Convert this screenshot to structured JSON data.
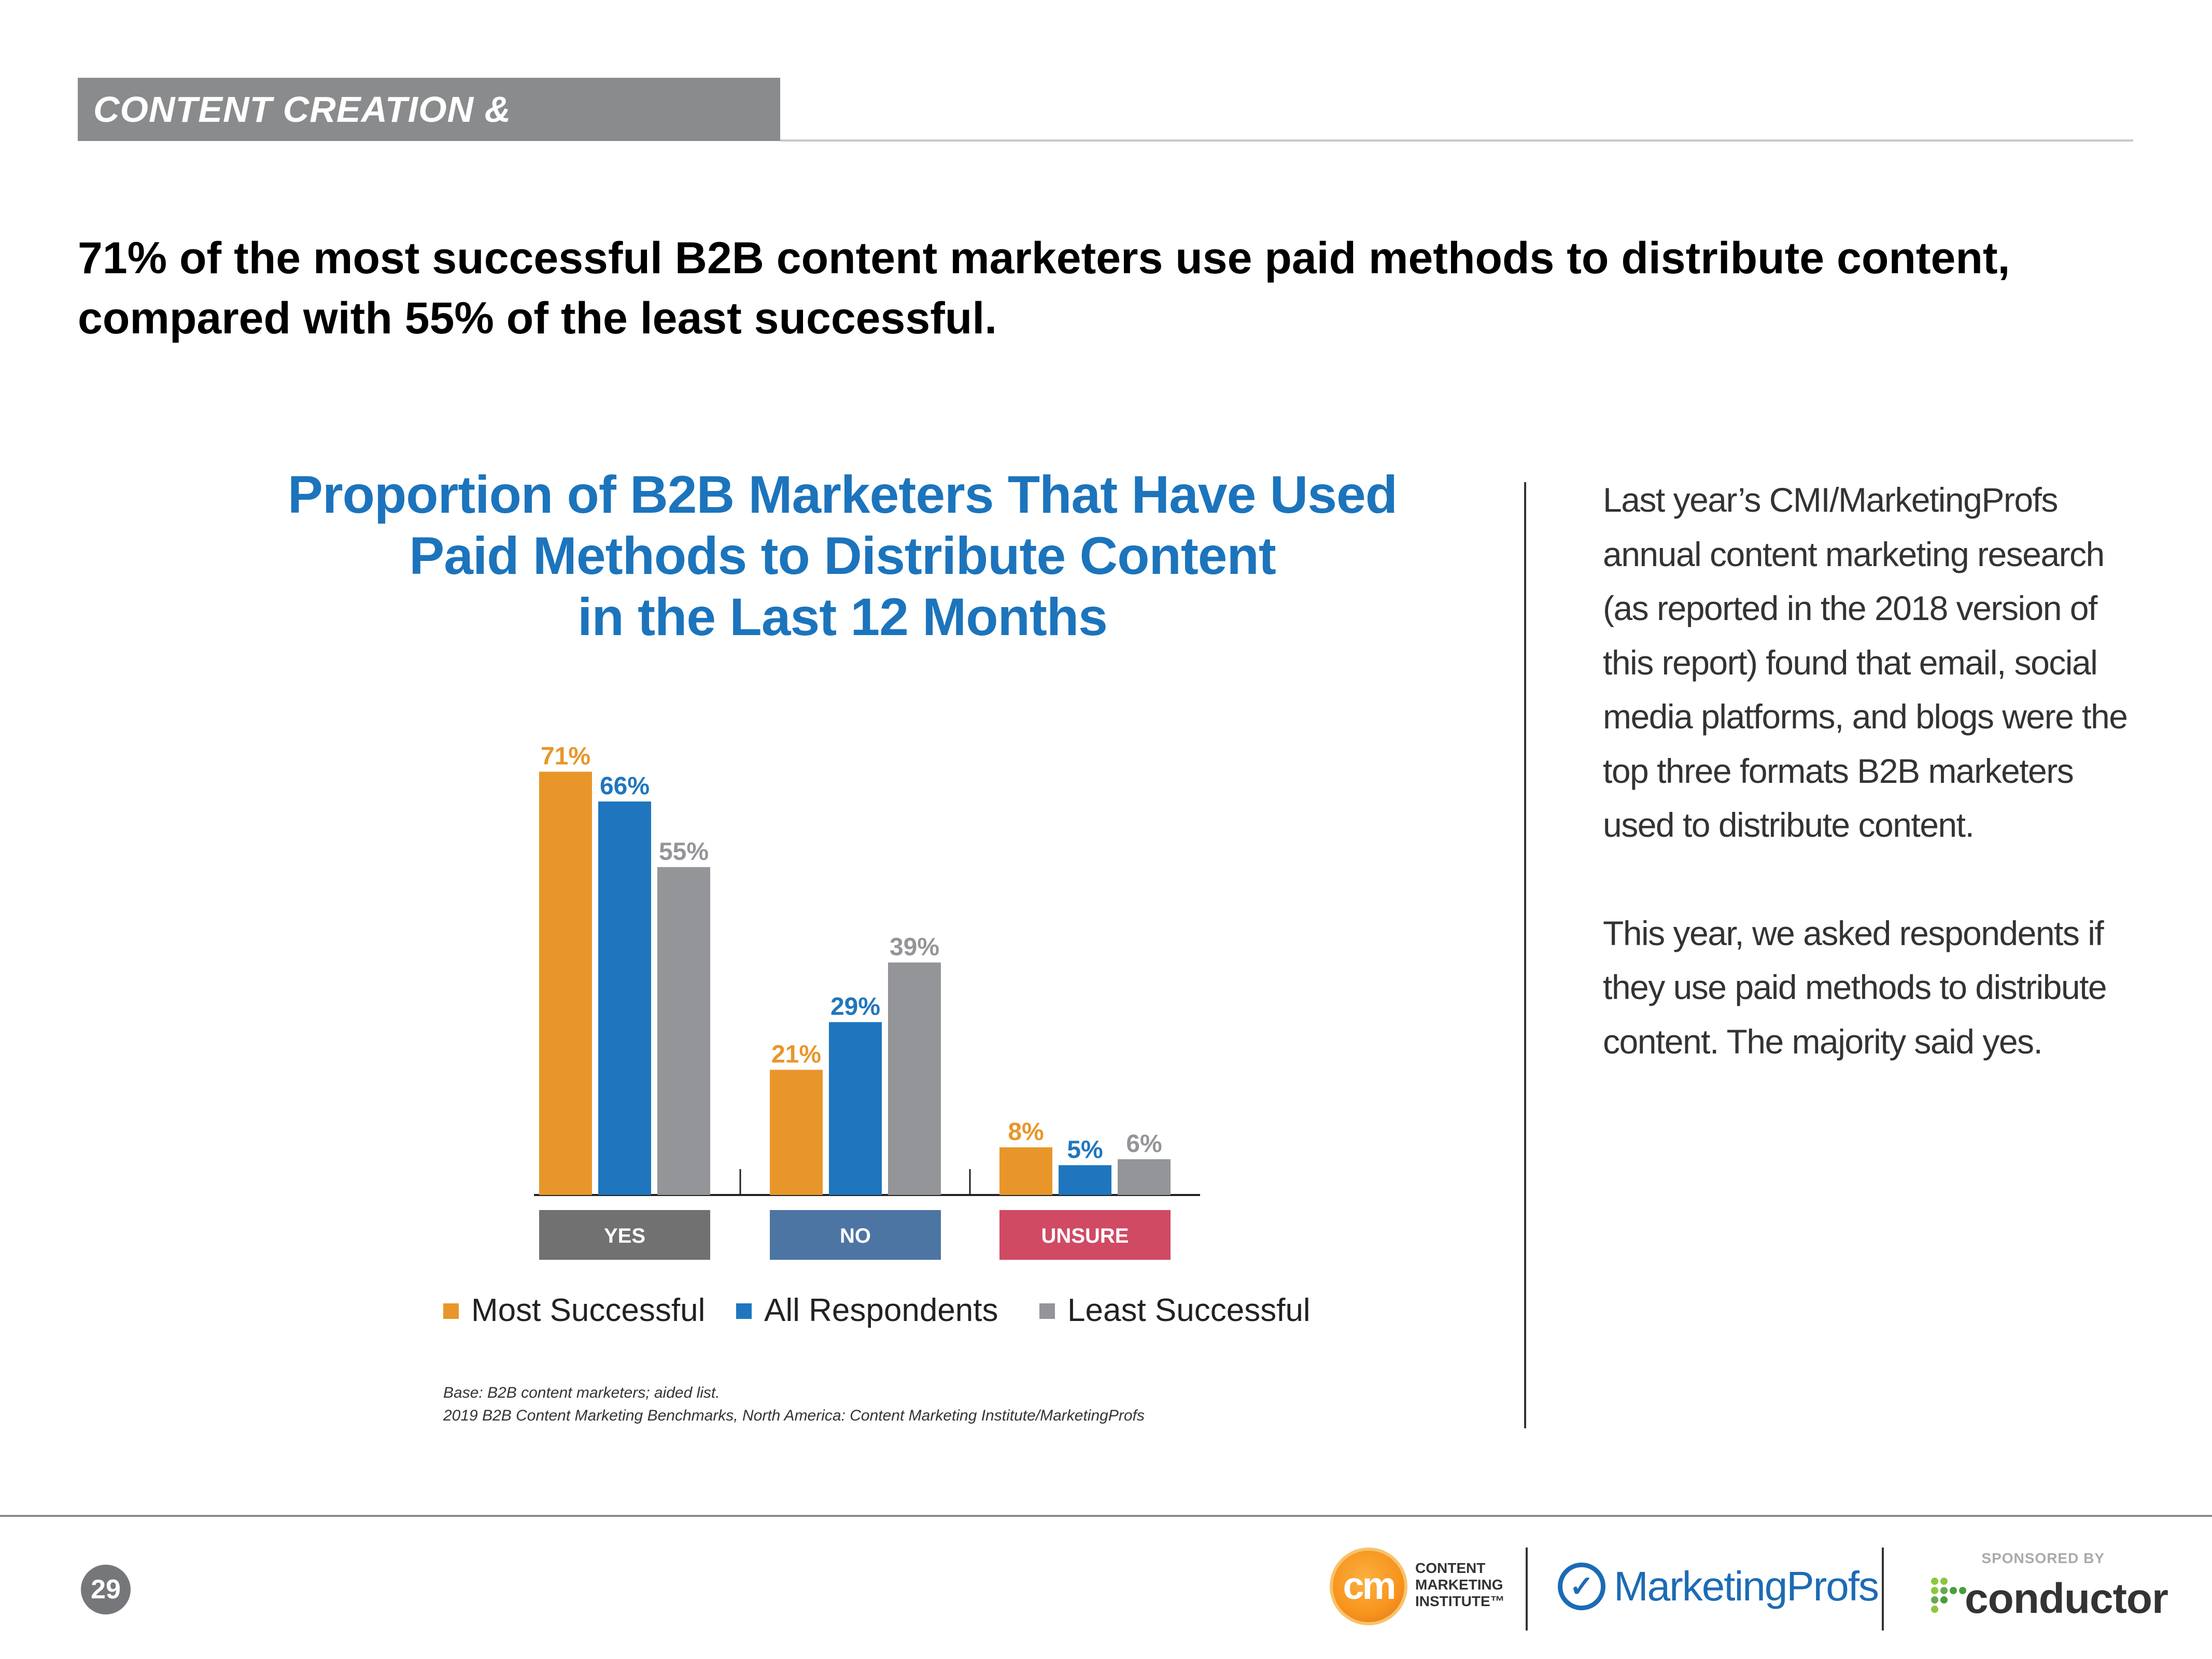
{
  "section": {
    "tag": "CONTENT CREATION & DISTRIBUTION"
  },
  "headline": "71% of the most successful B2B content marketers use paid methods to distribute content, compared with 55% of the least successful.",
  "chart_title_lines": [
    "Proportion of B2B Marketers That Have Used",
    "Paid Methods to Distribute Content",
    "in the Last 12 Months"
  ],
  "colors": {
    "most_successful": "#e8962a",
    "all_respondents": "#1f76be",
    "least_successful": "#939598",
    "yes_label": "#717171",
    "no_label": "#4c75a3",
    "unsure_label": "#d04a64",
    "chart_title": "#1c74bc"
  },
  "chart_data": {
    "type": "bar",
    "title": "Proportion of B2B Marketers That Have Used Paid Methods to Distribute Content in the Last 12 Months",
    "categories": [
      "YES",
      "NO",
      "UNSURE"
    ],
    "series": [
      {
        "name": "Most Successful",
        "values": [
          71,
          21,
          8
        ],
        "labels": [
          "71%",
          "21%",
          "8%"
        ]
      },
      {
        "name": "All Respondents",
        "values": [
          66,
          29,
          5
        ],
        "labels": [
          "66%",
          "29%",
          "5%"
        ]
      },
      {
        "name": "Least Successful",
        "values": [
          55,
          39,
          6
        ],
        "labels": [
          "55%",
          "39%",
          "6%"
        ]
      }
    ],
    "unit": "%",
    "ylim": [
      0,
      100
    ],
    "xlabel": "",
    "ylabel": "",
    "legend_position": "bottom",
    "grid": false
  },
  "footnote": {
    "base": "Base: B2B content marketers; aided list.",
    "source": "2019 B2B Content Marketing Benchmarks, North America: Content Marketing Institute/MarketingProfs"
  },
  "side_text": {
    "paragraph1": "Last year’s CMI/MarketingProfs annual content marketing research (as reported in the 2018 version of this report) found that email, social media platforms, and blogs were the top three formats B2B marketers used to distribute content.",
    "paragraph2": "This year, we asked respondents if they use paid methods to distribute content. The majority said yes."
  },
  "footer": {
    "page_number": "29",
    "cmi_mark": "cm",
    "cmi_lines": [
      "CONTENT",
      "MARKETING",
      "INSTITUTE™"
    ],
    "mp_name": "MarketingProfs",
    "sponsored_by": "SPONSORED BY",
    "sponsor_name": "conductor"
  }
}
